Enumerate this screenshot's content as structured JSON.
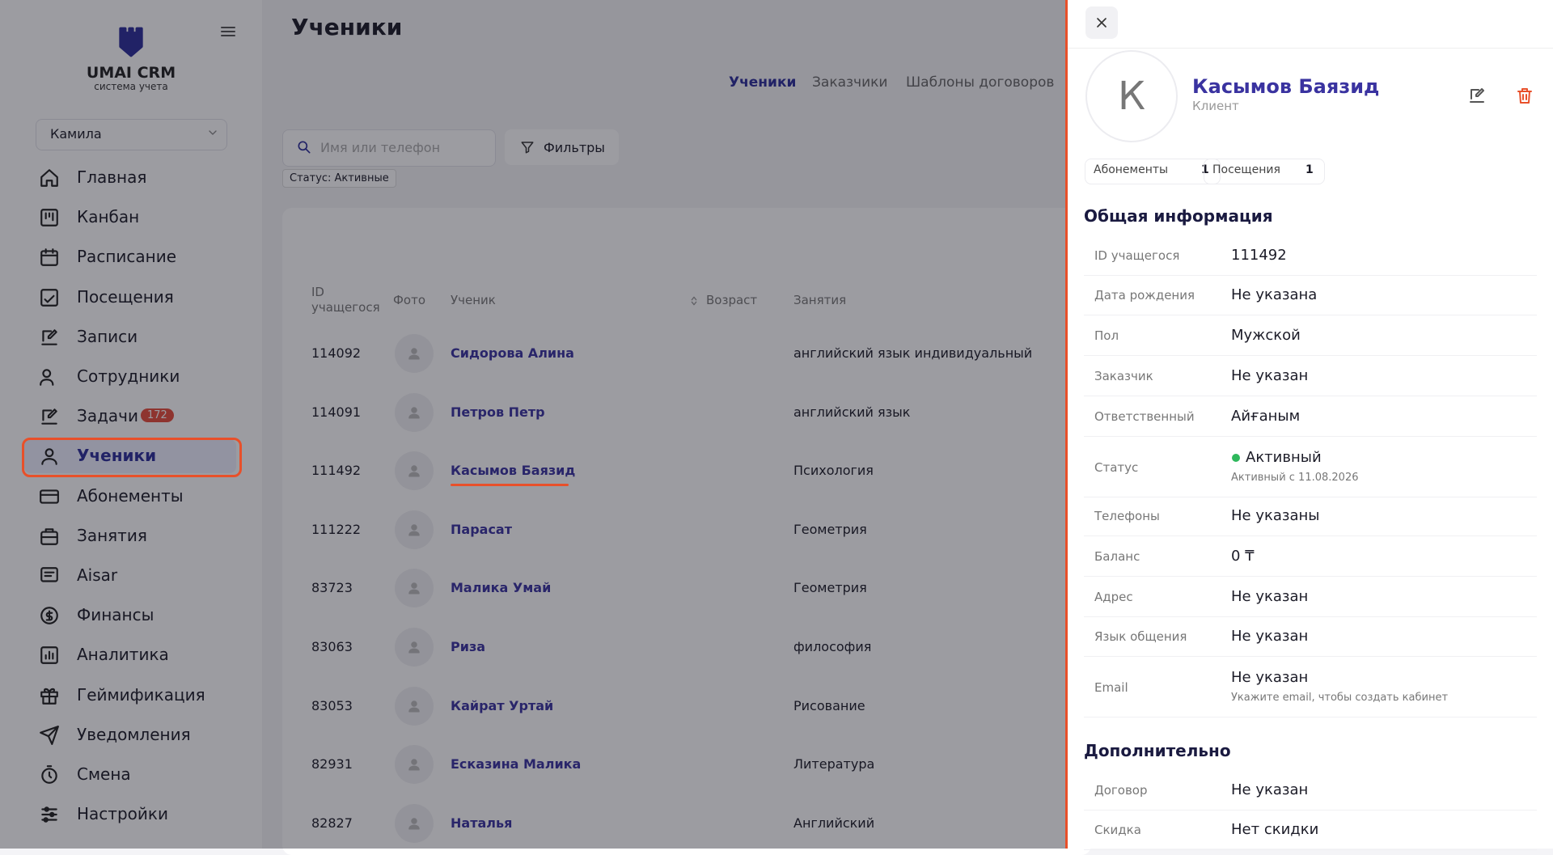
{
  "sidebar": {
    "brand": "UMAI CRM",
    "tagline": "система учета",
    "user": "Камила",
    "menu": [
      {
        "label": "Главная"
      },
      {
        "label": "Канбан"
      },
      {
        "label": "Расписание"
      },
      {
        "label": "Посещения"
      },
      {
        "label": "Записи"
      },
      {
        "label": "Сотрудники"
      },
      {
        "label": "Задачи",
        "badge": "172"
      },
      {
        "label": "Ученики"
      },
      {
        "label": "Абонементы"
      },
      {
        "label": "Занятия"
      },
      {
        "label": "Aisar"
      },
      {
        "label": "Финансы"
      },
      {
        "label": "Аналитика"
      },
      {
        "label": "Геймификация"
      },
      {
        "label": "Уведомления"
      },
      {
        "label": "Смена"
      },
      {
        "label": "Настройки"
      }
    ]
  },
  "page": {
    "title": "Ученики",
    "tabs": [
      "Ученики",
      "Заказчики",
      "Шаблоны договоров"
    ],
    "search_placeholder": "Имя или телефон",
    "filters_button": "Фильтры",
    "active_filter": "Статус: Активные"
  },
  "table": {
    "headers": [
      "ID учащегося",
      "Фото",
      "Ученик",
      "Возраст",
      "Занятия"
    ],
    "rows": [
      [
        "114092",
        "Сидорова Алина",
        "английский язык индивидуальный"
      ],
      [
        "114091",
        "Петров Петр",
        "английский язык"
      ],
      [
        "111492",
        "Касымов Баязид",
        "Психология"
      ],
      [
        "111222",
        "Парасат",
        "Геометрия"
      ],
      [
        "83723",
        "Малика Умай",
        "Геометрия"
      ],
      [
        "83063",
        "Риза",
        "философия"
      ],
      [
        "83053",
        "Кайрат Уртай",
        "Рисование"
      ],
      [
        "82931",
        "Есказина Малика",
        "Литература"
      ],
      [
        "82827",
        "Наталья",
        "Английский"
      ]
    ]
  },
  "panel": {
    "avatar_letter": "К",
    "name": "Касымов Баязид",
    "role": "Клиент",
    "counters": [
      {
        "label": "Абонементы",
        "count": "1"
      },
      {
        "label": "Посещения",
        "count": "1"
      }
    ],
    "general_title": "Общая информация",
    "fields": [
      {
        "label": "ID учащегося",
        "value": "111492"
      },
      {
        "label": "Дата рождения",
        "value": "Не указана"
      },
      {
        "label": "Пол",
        "value": "Мужской"
      },
      {
        "label": "Заказчик",
        "value": "Не указан"
      },
      {
        "label": "Ответственный",
        "value": "Айғаным"
      },
      {
        "label": "Статус",
        "value": "Активный",
        "note": "Активный с 11.08.2026"
      },
      {
        "label": "Телефоны",
        "value": "Не указаны"
      },
      {
        "label": "Баланс",
        "value": "0 ₸"
      },
      {
        "label": "Адрес",
        "value": "Не указан"
      },
      {
        "label": "Язык общения",
        "value": "Не указан"
      },
      {
        "label": "Email",
        "value": "Не указан",
        "note": "Укажите email, чтобы создать кабинет"
      }
    ],
    "extra_title": "Дополнительно",
    "extra_fields": [
      {
        "label": "Договор",
        "value": "Не указан"
      },
      {
        "label": "Скидка",
        "value": "Нет скидки"
      }
    ]
  }
}
